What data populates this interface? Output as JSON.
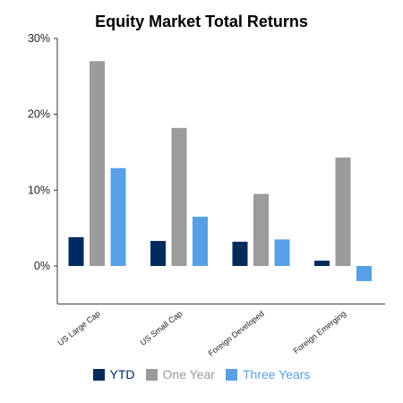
{
  "chart_data": {
    "type": "bar",
    "title": "Equity Market Total Returns",
    "categories": [
      "US Large Cap",
      "US Small Cap",
      "Foreign Developed",
      "Foreign Emerging"
    ],
    "series": [
      {
        "name": "YTD",
        "color": "#002b5c",
        "values": [
          3.8,
          3.3,
          3.2,
          0.7
        ]
      },
      {
        "name": "One Year",
        "color": "#9b9b9b",
        "values": [
          27.0,
          18.2,
          9.5,
          14.3
        ]
      },
      {
        "name": "Three Years",
        "color": "#57a0e5",
        "values": [
          12.9,
          6.5,
          3.5,
          -2.0
        ]
      }
    ],
    "y_ticks": [
      "30%",
      "20%",
      "10%",
      "0%"
    ],
    "ylim": [
      -5,
      30
    ],
    "grid": false,
    "legend_position": "bottom",
    "xlabel": "",
    "ylabel": ""
  }
}
